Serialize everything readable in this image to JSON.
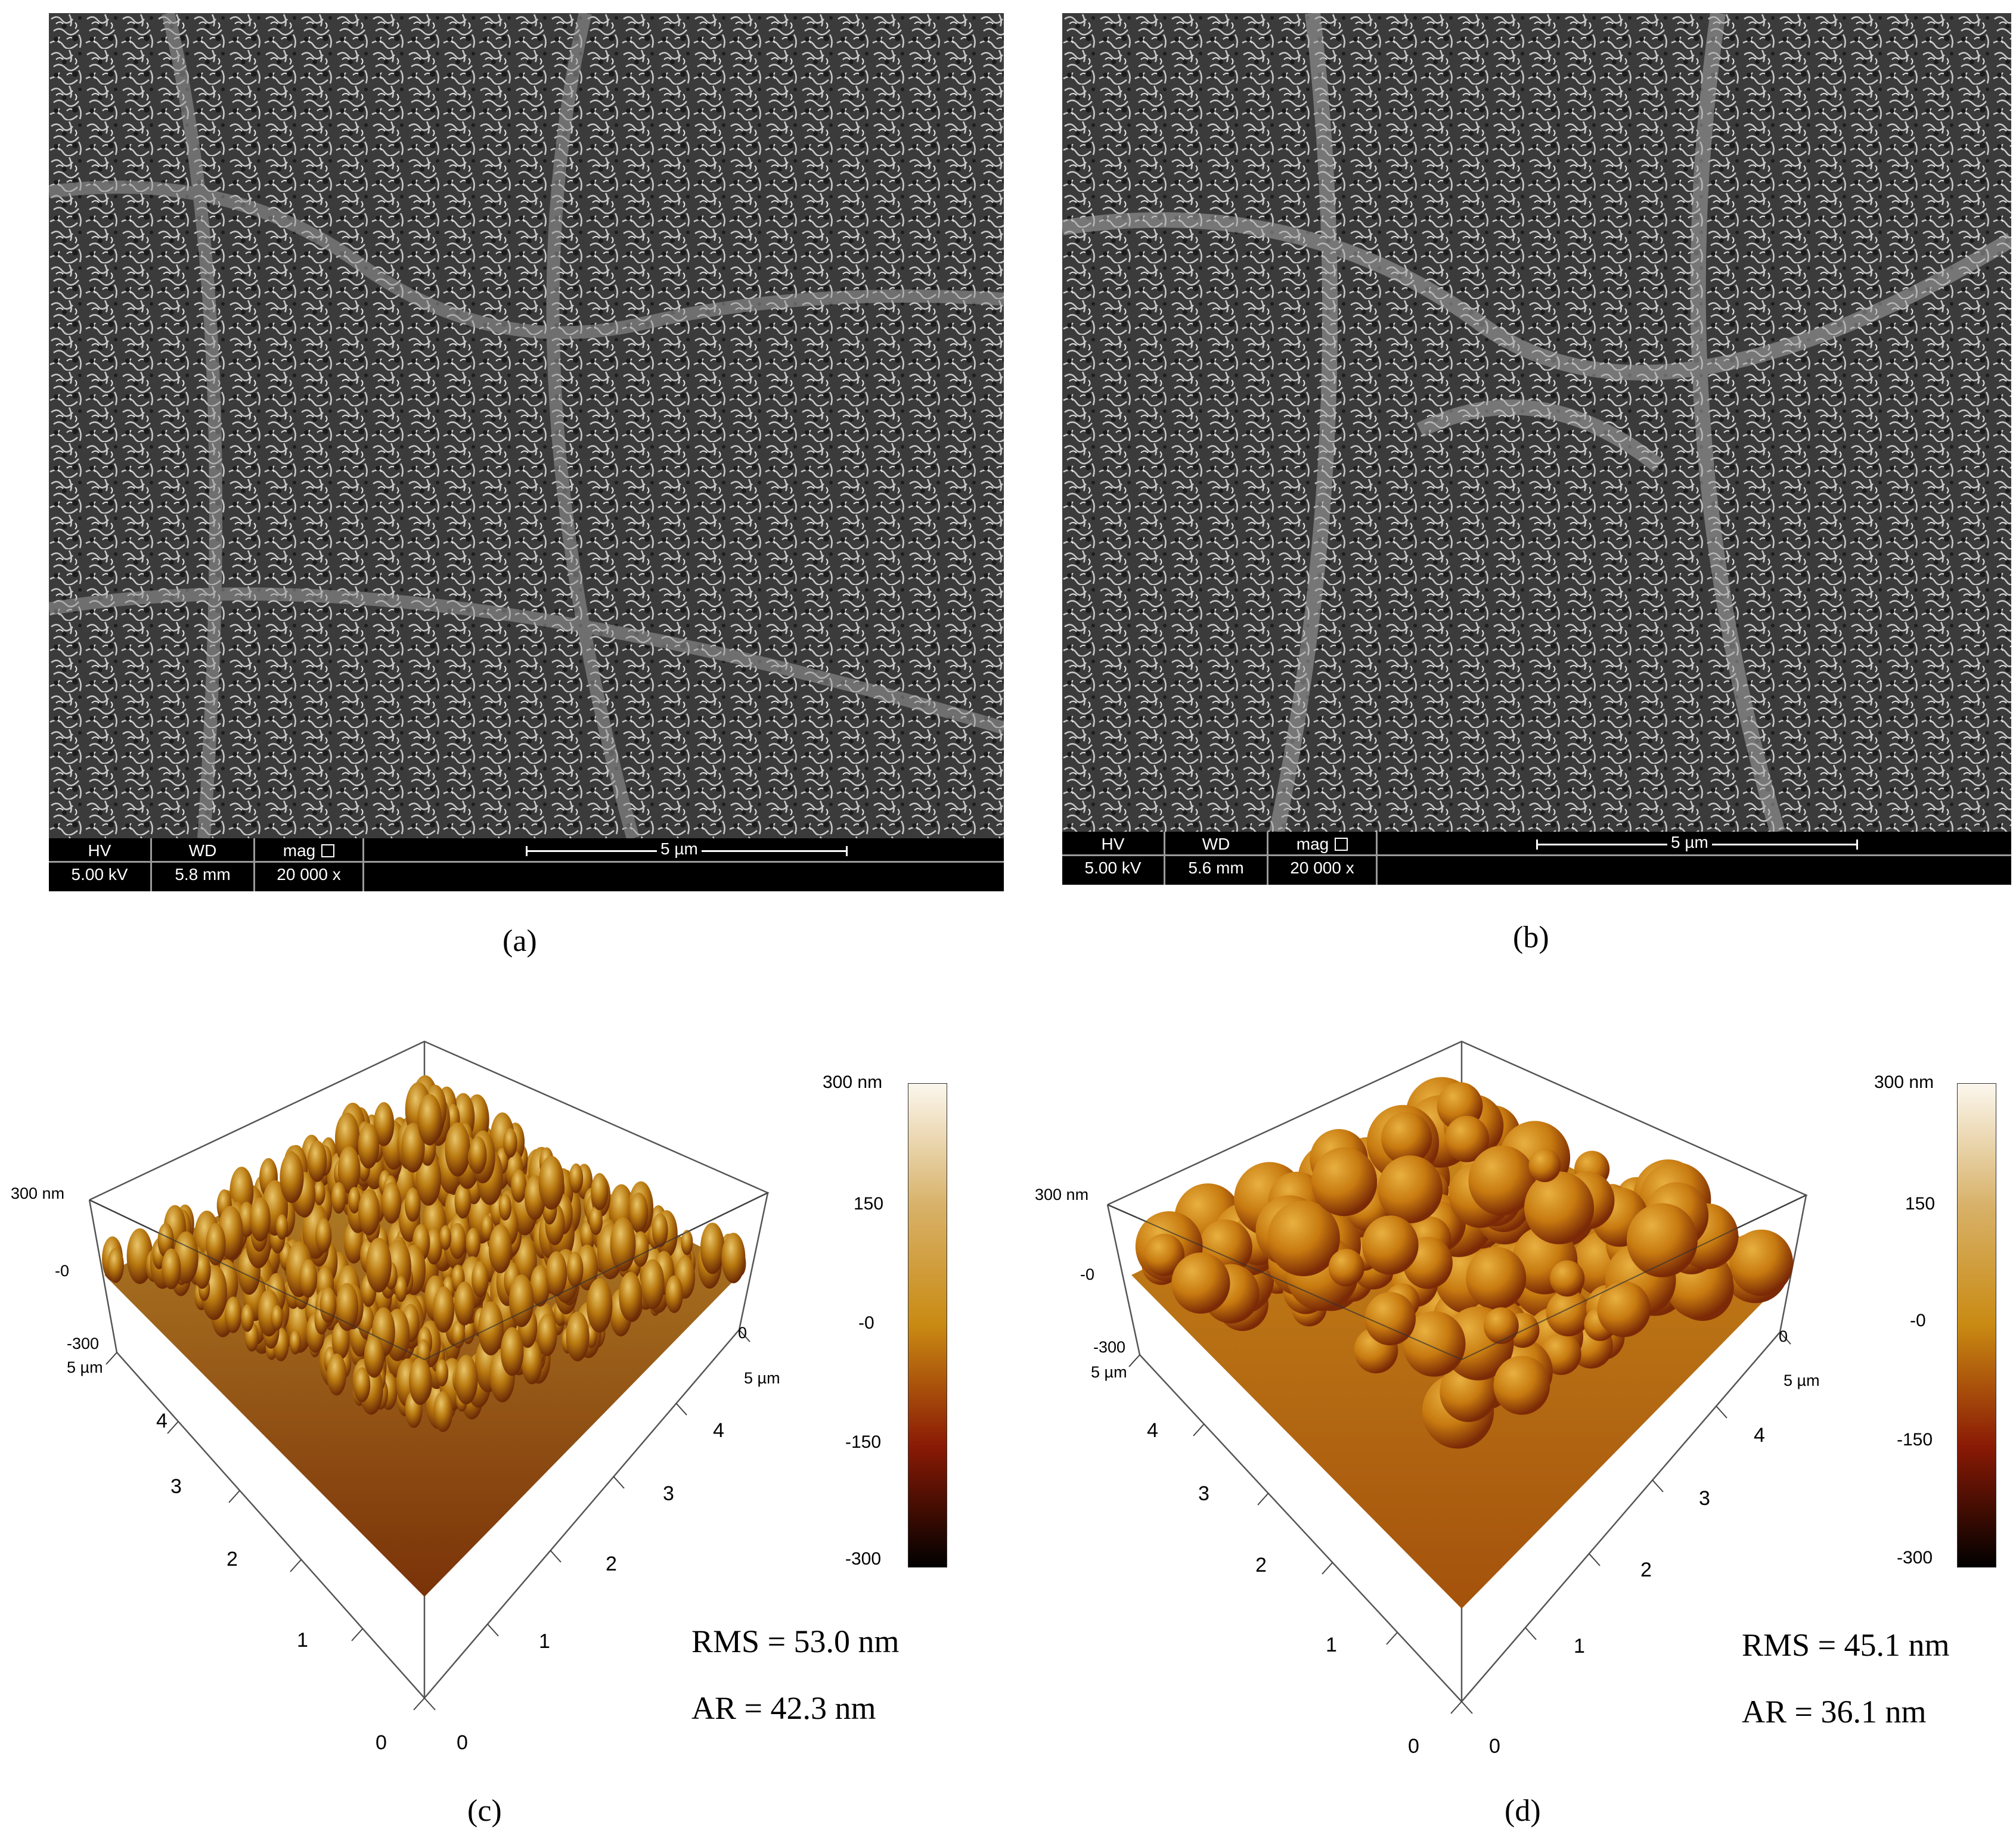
{
  "panels": {
    "a": {
      "caption": "(a)",
      "sem": {
        "hv_label": "HV",
        "hv_value": "5.00 kV",
        "wd_label": "WD",
        "wd_value": "5.8 mm",
        "mag_label": "mag",
        "mag_value": "20 000 x",
        "scale_label": "5 µm"
      }
    },
    "b": {
      "caption": "(b)",
      "sem": {
        "hv_label": "HV",
        "hv_value": "5.00 kV",
        "wd_label": "WD",
        "wd_value": "5.6 mm",
        "mag_label": "mag",
        "mag_value": "20 000 x",
        "scale_label": "5 µm"
      }
    },
    "c": {
      "caption": "(c)",
      "rms": "RMS = 53.0 nm",
      "ar": "AR = 42.3 nm",
      "z_top": "300 nm",
      "z_mid": "-0",
      "z_bot": "-300",
      "left_axis": [
        "5 µm",
        "4",
        "3",
        "2",
        "1",
        "0"
      ],
      "right_axis": [
        "0",
        "1",
        "2",
        "3",
        "4",
        "5 µm"
      ],
      "right_top": "0",
      "colorbar": [
        "300 nm",
        "150",
        "-0",
        "-150",
        "-300"
      ]
    },
    "d": {
      "caption": "(d)",
      "rms": "RMS = 45.1 nm",
      "ar": "AR = 36.1 nm",
      "z_top": "300 nm",
      "z_mid": "-0",
      "z_bot": "-300",
      "left_axis": [
        "5 µm",
        "4",
        "3",
        "2",
        "1",
        "0"
      ],
      "right_axis": [
        "0",
        "1",
        "2",
        "3",
        "4",
        "5 µm"
      ],
      "right_top": "0",
      "colorbar": [
        "300 nm",
        "150",
        "-0",
        "-150",
        "-300"
      ]
    }
  },
  "colors": {
    "afm_high": "#fbf7ee",
    "afm_mid": "#c98a12",
    "afm_low": "#8a1a05",
    "afm_bottom": "#000000",
    "sem_bg": "#4a4a4a"
  }
}
